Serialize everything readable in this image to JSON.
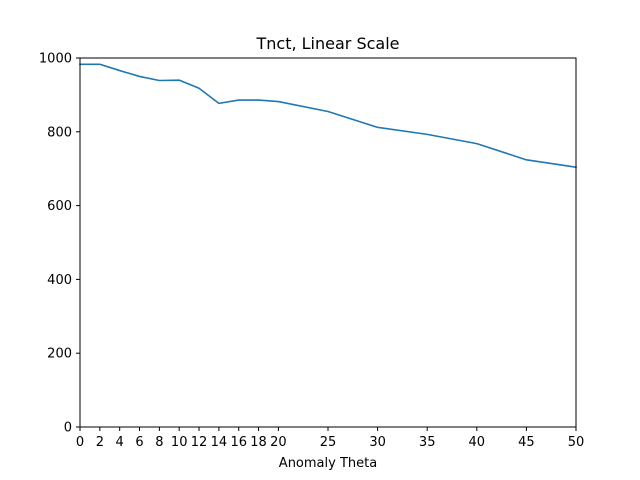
{
  "chart_data": {
    "type": "line",
    "title": "Tnct, Linear Scale",
    "xlabel": "Anomaly Theta",
    "ylabel": "",
    "xlim": [
      0,
      50
    ],
    "ylim": [
      0,
      1000
    ],
    "xticks": [
      0,
      2,
      4,
      6,
      8,
      10,
      12,
      14,
      16,
      18,
      20,
      25,
      30,
      35,
      40,
      45,
      50
    ],
    "yticks": [
      0,
      200,
      400,
      600,
      800,
      1000
    ],
    "grid": false,
    "series": [
      {
        "color": "#1f77b4",
        "x": [
          0,
          2,
          4,
          6,
          8,
          10,
          12,
          14,
          16,
          18,
          20,
          25,
          30,
          35,
          40,
          45,
          50
        ],
        "y": [
          983,
          983,
          966,
          950,
          939,
          940,
          918,
          877,
          886,
          886,
          882,
          855,
          812,
          793,
          768,
          724,
          704
        ]
      }
    ]
  }
}
